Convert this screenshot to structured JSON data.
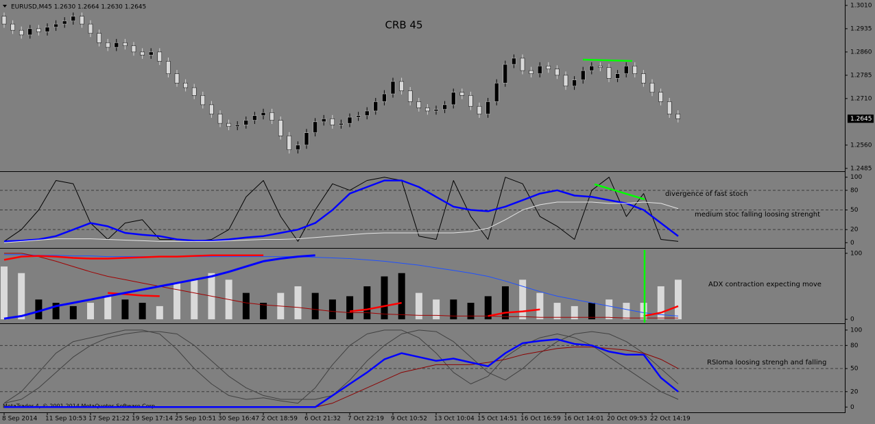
{
  "header": "EURUSD,M45  1.2630 1.2664 1.2630 1.2645",
  "chart_data": [
    {
      "type": "candlestick",
      "title": "CRB 45",
      "categories": [
        "8 Sep 2014",
        null,
        null,
        null,
        null,
        "11 Sep 10:53",
        null,
        null,
        null,
        null,
        "17 Sep 21:22",
        null,
        null,
        null,
        null,
        "19 Sep 17:14",
        null,
        null,
        null,
        null,
        "25 Sep 10:51",
        null,
        null,
        null,
        null,
        "30 Sep 16:47",
        null,
        null,
        null,
        null,
        "2 Oct 18:59",
        null,
        null,
        null,
        null,
        "6 Oct 21:32",
        null,
        null,
        null,
        null,
        "7 Oct 22:19",
        null,
        null,
        null,
        null,
        "9 Oct 10:52",
        null,
        null,
        null,
        null,
        "13 Oct 10:04",
        null,
        null,
        null,
        null,
        "15 Oct 14:51",
        null,
        null,
        null,
        null,
        "16 Oct 16:59",
        null,
        null,
        null,
        null,
        "16 Oct 14:01",
        null,
        null,
        null,
        null,
        "20 Oct 09:53",
        null,
        null,
        null,
        null,
        "22 Oct 14:19",
        null,
        null,
        null
      ],
      "open": [
        1.2975,
        1.295,
        1.293,
        1.2915,
        1.2935,
        1.2925,
        1.294,
        1.295,
        1.296,
        1.2975,
        1.295,
        1.292,
        1.289,
        1.2875,
        1.289,
        1.288,
        1.286,
        1.285,
        1.286,
        1.283,
        1.279,
        1.276,
        1.2745,
        1.272,
        1.269,
        1.266,
        1.263,
        1.262,
        1.2625,
        1.264,
        1.2655,
        1.2665,
        1.264,
        1.259,
        1.2545,
        1.256,
        1.26,
        1.2635,
        1.2645,
        1.2625,
        1.263,
        1.265,
        1.2655,
        1.267,
        1.27,
        1.2725,
        1.2765,
        1.2735,
        1.27,
        1.268,
        1.267,
        1.2675,
        1.269,
        1.273,
        1.272,
        1.2685,
        1.266,
        1.27,
        1.276,
        1.282,
        1.284,
        1.28,
        1.279,
        1.2815,
        1.2805,
        1.2785,
        1.275,
        1.277,
        1.28,
        1.2815,
        1.281,
        1.2775,
        1.279,
        1.2815,
        1.279,
        1.276,
        1.273,
        1.27,
        1.266
      ],
      "high": [
        1.2987,
        1.2962,
        1.2942,
        1.2947,
        1.2947,
        1.2952,
        1.2962,
        1.2972,
        1.2987,
        1.2987,
        1.2962,
        1.2932,
        1.2902,
        1.2902,
        1.2902,
        1.2892,
        1.2872,
        1.2872,
        1.2872,
        1.2842,
        1.2802,
        1.2772,
        1.2757,
        1.2732,
        1.2702,
        1.2672,
        1.2642,
        1.2637,
        1.2652,
        1.2667,
        1.2677,
        1.2677,
        1.2652,
        1.2602,
        1.2572,
        1.2612,
        1.2647,
        1.2657,
        1.2657,
        1.2642,
        1.2662,
        1.2667,
        1.2682,
        1.2712,
        1.2737,
        1.2777,
        1.2777,
        1.2747,
        1.2712,
        1.2692,
        1.2687,
        1.2702,
        1.2742,
        1.2742,
        1.2732,
        1.2697,
        1.2712,
        1.2772,
        1.2832,
        1.2852,
        1.2852,
        1.2812,
        1.2827,
        1.2827,
        1.2817,
        1.2797,
        1.2782,
        1.2812,
        1.2827,
        1.2827,
        1.2822,
        1.2802,
        1.2827,
        1.2827,
        1.2802,
        1.2772,
        1.2742,
        1.2712,
        1.2672
      ],
      "low": [
        1.2938,
        1.2918,
        1.2903,
        1.2903,
        1.2913,
        1.2913,
        1.2928,
        1.2938,
        1.2948,
        1.2938,
        1.2908,
        1.2878,
        1.2863,
        1.2863,
        1.2868,
        1.2848,
        1.2838,
        1.2838,
        1.2818,
        1.2778,
        1.2748,
        1.2733,
        1.2708,
        1.2678,
        1.2648,
        1.2618,
        1.2608,
        1.2608,
        1.2613,
        1.2628,
        1.2643,
        1.2628,
        1.2578,
        1.2533,
        1.2533,
        1.2548,
        1.2588,
        1.2623,
        1.2613,
        1.2613,
        1.2618,
        1.2638,
        1.2643,
        1.2658,
        1.2688,
        1.2713,
        1.2723,
        1.2688,
        1.2668,
        1.2658,
        1.2658,
        1.2663,
        1.2678,
        1.2708,
        1.2673,
        1.2648,
        1.2648,
        1.2688,
        1.2748,
        1.2808,
        1.2788,
        1.2778,
        1.2778,
        1.2793,
        1.2773,
        1.2738,
        1.2738,
        1.2758,
        1.2788,
        1.2798,
        1.2763,
        1.2763,
        1.2778,
        1.2778,
        1.2748,
        1.2718,
        1.2688,
        1.2648,
        1.2633
      ],
      "close": [
        1.295,
        1.293,
        1.2915,
        1.2935,
        1.2925,
        1.294,
        1.295,
        1.296,
        1.2975,
        1.295,
        1.292,
        1.289,
        1.2875,
        1.289,
        1.288,
        1.286,
        1.285,
        1.286,
        1.283,
        1.279,
        1.276,
        1.2745,
        1.272,
        1.269,
        1.266,
        1.263,
        1.262,
        1.2625,
        1.264,
        1.2655,
        1.2665,
        1.264,
        1.259,
        1.2545,
        1.256,
        1.26,
        1.2635,
        1.2645,
        1.2625,
        1.263,
        1.265,
        1.2655,
        1.267,
        1.27,
        1.2725,
        1.2765,
        1.2735,
        1.27,
        1.268,
        1.267,
        1.2675,
        1.269,
        1.273,
        1.272,
        1.2685,
        1.266,
        1.27,
        1.276,
        1.282,
        1.284,
        1.28,
        1.279,
        1.2815,
        1.2805,
        1.2785,
        1.275,
        1.277,
        1.28,
        1.2815,
        1.281,
        1.2775,
        1.279,
        1.2815,
        1.279,
        1.276,
        1.273,
        1.27,
        1.266,
        1.2645
      ],
      "up_color": "#000000",
      "down_color": "#d9d9d9",
      "last_price": 1.2645,
      "ylim": [
        1.2478,
        1.3023
      ],
      "yticks": [
        {
          "value": 1.301,
          "label": "1.3010"
        },
        {
          "value": 1.2935,
          "label": "1.2935"
        },
        {
          "value": 1.286,
          "label": "1.2860"
        },
        {
          "value": 1.2785,
          "label": "1.2785"
        },
        {
          "value": 1.271,
          "label": "1.2710"
        },
        {
          "value": 1.256,
          "label": "1.2560"
        },
        {
          "value": 1.2485,
          "label": "1.2485"
        }
      ]
    },
    {
      "type": "line",
      "annotation": "divergence of fast stoch",
      "annotation2": "medium stoc falling loosing strenght",
      "ylim": [
        -7,
        107
      ],
      "yticks": [
        100,
        80,
        50,
        20,
        0
      ],
      "levels": [
        80,
        50,
        20
      ],
      "series": [
        {
          "color": "#000000",
          "width": 1,
          "values": [
            2,
            20,
            50,
            95,
            90,
            30,
            5,
            30,
            35,
            5,
            5,
            2,
            5,
            20,
            70,
            95,
            40,
            2,
            50,
            90,
            80,
            95,
            100,
            95,
            10,
            5,
            95,
            40,
            5,
            100,
            90,
            40,
            25,
            5,
            80,
            100,
            40,
            75,
            5,
            2
          ]
        },
        {
          "color": "#0000ff",
          "width": 2.5,
          "values": [
            2,
            3,
            5,
            10,
            20,
            30,
            25,
            15,
            12,
            10,
            5,
            3,
            3,
            5,
            8,
            10,
            15,
            20,
            30,
            50,
            75,
            85,
            95,
            95,
            85,
            70,
            55,
            50,
            48,
            55,
            65,
            75,
            80,
            72,
            70,
            65,
            60,
            50,
            30,
            10
          ]
        },
        {
          "color": "#e6e6e6",
          "width": 1,
          "values": [
            0,
            2,
            4,
            6,
            6,
            6,
            5,
            4,
            3,
            2,
            2,
            2,
            2,
            3,
            4,
            5,
            5,
            6,
            8,
            10,
            12,
            14,
            15,
            15,
            15,
            15,
            15,
            17,
            22,
            35,
            50,
            58,
            62,
            62,
            62,
            60,
            60,
            62,
            60,
            52
          ]
        }
      ]
    },
    {
      "type": "bar",
      "annotation": "ADX contraction expecting move",
      "ylim": [
        -5,
        106
      ],
      "yticks": [
        100,
        0
      ],
      "values": [
        80,
        70,
        30,
        25,
        20,
        25,
        35,
        30,
        25,
        20,
        55,
        60,
        70,
        60,
        40,
        25,
        40,
        50,
        40,
        30,
        35,
        50,
        65,
        70,
        40,
        30,
        30,
        25,
        35,
        50,
        60,
        40,
        25,
        20,
        25,
        30,
        25,
        25,
        50,
        60
      ],
      "bar_colors": [
        "#d9d9d9",
        "#d9d9d9",
        "#000000",
        "#000000",
        "#000000",
        "#d9d9d9",
        "#d9d9d9",
        "#000000",
        "#000000",
        "#d9d9d9",
        "#d9d9d9",
        "#d9d9d9",
        "#d9d9d9",
        "#d9d9d9",
        "#000000",
        "#000000",
        "#d9d9d9",
        "#d9d9d9",
        "#000000",
        "#000000",
        "#000000",
        "#000000",
        "#000000",
        "#000000",
        "#d9d9d9",
        "#d9d9d9",
        "#000000",
        "#000000",
        "#000000",
        "#000000",
        "#d9d9d9",
        "#d9d9d9",
        "#d9d9d9",
        "#d9d9d9",
        "#000000",
        "#d9d9d9",
        "#d9d9d9",
        "#d9d9d9",
        "#d9d9d9",
        "#d9d9d9"
      ],
      "series": [
        {
          "color": "#1e50ff",
          "width": 1,
          "values": [
            98,
            98,
            97,
            97,
            96,
            96,
            95,
            95,
            95,
            95,
            95,
            95,
            95,
            95,
            95,
            95,
            95,
            95,
            94,
            93,
            92,
            90,
            88,
            85,
            82,
            78,
            74,
            70,
            65,
            58,
            50,
            42,
            35,
            30,
            25,
            20,
            15,
            10,
            7,
            5
          ]
        },
        {
          "color": "#a00000",
          "width": 1,
          "values": [
            100,
            100,
            95,
            88,
            80,
            72,
            65,
            60,
            55,
            50,
            45,
            40,
            35,
            30,
            25,
            22,
            20,
            18,
            15,
            12,
            10,
            10,
            8,
            7,
            6,
            6,
            5,
            5,
            5,
            4,
            4,
            3,
            3,
            3,
            3,
            3,
            2,
            2,
            2,
            2
          ]
        },
        {
          "color": "#ff0000",
          "width": 2.5,
          "values": [
            90,
            95,
            96,
            95,
            93,
            92,
            92,
            93,
            94,
            95,
            95,
            96,
            97,
            97,
            97,
            97,
            null,
            null,
            null,
            null,
            null,
            null,
            null,
            null,
            null,
            null,
            null,
            null,
            null,
            null,
            null,
            null,
            null,
            null,
            null,
            null,
            null,
            null,
            null,
            null
          ]
        },
        {
          "color": "#ff0000",
          "width": 2.5,
          "values": [
            null,
            null,
            null,
            null,
            null,
            null,
            40,
            38,
            36,
            35,
            null,
            null,
            null,
            null,
            null,
            null,
            null,
            null,
            null,
            null,
            12,
            15,
            20,
            25,
            null,
            null,
            null,
            null,
            5,
            10,
            12,
            15,
            null,
            null,
            null,
            null,
            null,
            5,
            10,
            20
          ]
        },
        {
          "color": "#0000ff",
          "width": 3,
          "values": [
            1,
            5,
            12,
            20,
            25,
            30,
            35,
            40,
            45,
            50,
            55,
            60,
            65,
            72,
            80,
            88,
            92,
            95,
            97,
            null,
            null,
            null,
            null,
            null,
            null,
            null,
            null,
            null,
            null,
            null,
            null,
            null,
            null,
            null,
            null,
            null,
            null,
            null,
            null,
            null
          ]
        }
      ]
    },
    {
      "type": "line",
      "annotation": "RSIoma loosing strengh and falling",
      "watermark": "MetaTrader 4, © 2001-2014 MetaQuotes Software Corp.",
      "ylim": [
        -6,
        107
      ],
      "yticks": [
        100,
        80,
        50,
        20,
        0
      ],
      "levels": [
        80,
        50,
        20
      ],
      "series": [
        {
          "color": "#404040",
          "width": 1,
          "values": [
            5,
            20,
            45,
            70,
            85,
            90,
            95,
            100,
            100,
            95,
            75,
            50,
            30,
            15,
            10,
            12,
            8,
            5,
            25,
            55,
            80,
            95,
            100,
            100,
            90,
            70,
            45,
            30,
            40,
            65,
            80,
            90,
            95,
            90,
            80,
            65,
            50,
            35,
            20,
            10
          ]
        },
        {
          "color": "#404040",
          "width": 1,
          "values": [
            5,
            10,
            25,
            45,
            65,
            80,
            90,
            95,
            98,
            98,
            95,
            80,
            60,
            40,
            25,
            15,
            10,
            10,
            10,
            15,
            35,
            60,
            80,
            95,
            100,
            98,
            85,
            65,
            45,
            35,
            50,
            70,
            85,
            95,
            98,
            95,
            85,
            70,
            50,
            30
          ]
        },
        {
          "color": "#8b0000",
          "width": 1,
          "values": [
            0,
            0,
            0,
            0,
            0,
            0,
            0,
            0,
            0,
            0,
            0,
            0,
            0,
            0,
            0,
            0,
            0,
            0,
            0,
            5,
            15,
            25,
            35,
            45,
            50,
            55,
            55,
            55,
            58,
            62,
            68,
            72,
            76,
            78,
            78,
            76,
            74,
            70,
            62,
            50
          ]
        },
        {
          "color": "#0000ff",
          "width": 2.5,
          "values": [
            0,
            0,
            0,
            0,
            0,
            0,
            0,
            0,
            0,
            0,
            0,
            0,
            0,
            0,
            0,
            0,
            0,
            0,
            0,
            15,
            30,
            45,
            62,
            70,
            65,
            60,
            63,
            58,
            53,
            70,
            83,
            86,
            88,
            82,
            80,
            72,
            68,
            68,
            38,
            20
          ]
        }
      ]
    }
  ]
}
